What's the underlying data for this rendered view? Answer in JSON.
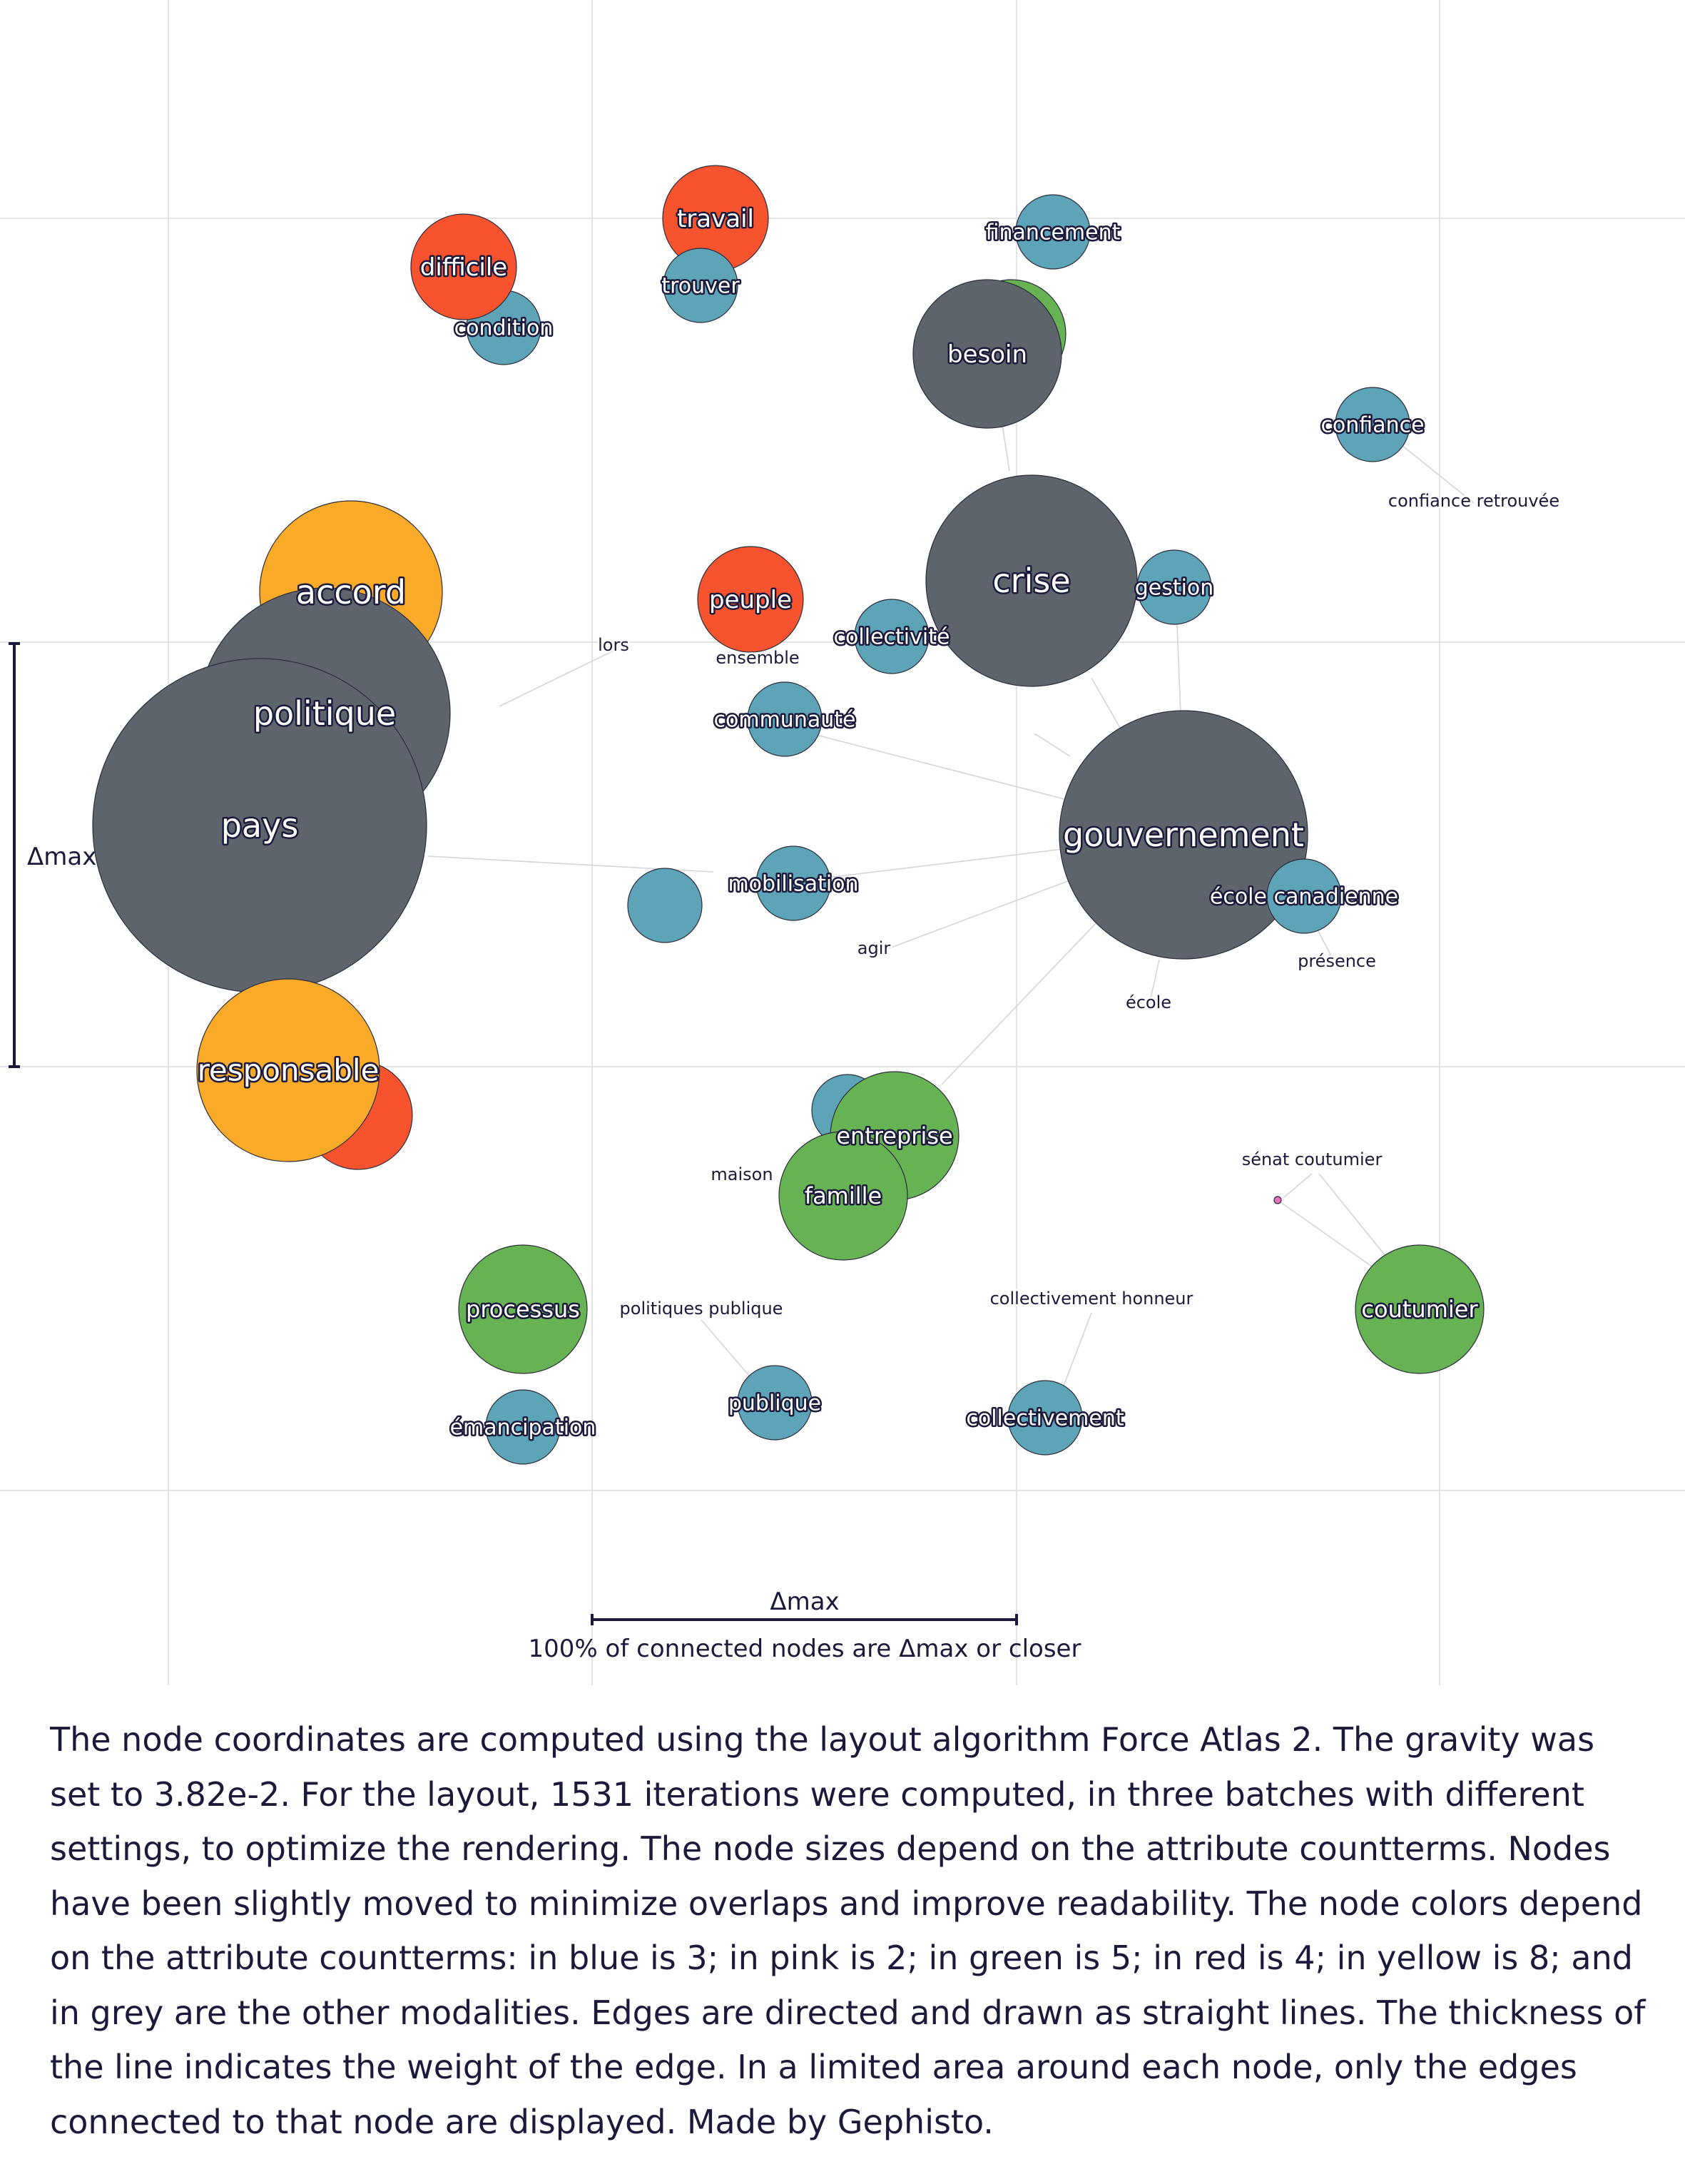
{
  "colors": {
    "blue": "#5ea4b8",
    "grey": "#5e646c",
    "red": "#f8532f",
    "green": "#67b253",
    "yellow": "#f8aa28",
    "pink": "#e86fc4",
    "ink": "#1b1a3a",
    "grid": "#e3e3e6",
    "edge": "#d4d4d8"
  },
  "nodes": [
    {
      "id": "accord",
      "label": "accord",
      "color": "yellow",
      "labeled": true
    },
    {
      "id": "politique",
      "label": "politique",
      "color": "grey",
      "labeled": true
    },
    {
      "id": "pays",
      "label": "pays",
      "color": "grey",
      "labeled": true
    },
    {
      "id": "responsable_red",
      "label": "",
      "color": "red",
      "labeled": false
    },
    {
      "id": "responsable",
      "label": "responsable",
      "color": "yellow",
      "labeled": true
    },
    {
      "id": "travail",
      "label": "travail",
      "color": "red",
      "labeled": true
    },
    {
      "id": "trouver",
      "label": "trouver",
      "color": "blue",
      "labeled": true
    },
    {
      "id": "condition",
      "label": "condition",
      "color": "blue",
      "labeled": true
    },
    {
      "id": "difficile",
      "label": "difficile",
      "color": "red",
      "labeled": true
    },
    {
      "id": "financement",
      "label": "financement",
      "color": "blue",
      "labeled": true
    },
    {
      "id": "besoin_green",
      "label": "",
      "color": "green",
      "labeled": false
    },
    {
      "id": "besoin",
      "label": "besoin",
      "color": "grey",
      "labeled": true
    },
    {
      "id": "confiance",
      "label": "confiance",
      "color": "blue",
      "labeled": true
    },
    {
      "id": "crise",
      "label": "crise",
      "color": "grey",
      "labeled": true
    },
    {
      "id": "gestion",
      "label": "gestion",
      "color": "blue",
      "labeled": true
    },
    {
      "id": "collectivite",
      "label": "collectivité",
      "color": "blue",
      "labeled": true
    },
    {
      "id": "peuple",
      "label": "peuple",
      "color": "red",
      "labeled": true
    },
    {
      "id": "communaute",
      "label": "communauté",
      "color": "blue",
      "labeled": true
    },
    {
      "id": "gouvernement",
      "label": "gouvernement",
      "color": "grey",
      "labeled": true
    },
    {
      "id": "ecole_canadienne",
      "label": "école canadienne",
      "color": "blue",
      "labeled": true
    },
    {
      "id": "mobilisation",
      "label": "mobilisation",
      "color": "blue",
      "labeled": true
    },
    {
      "id": "unlabeled_blue",
      "label": "",
      "color": "blue",
      "labeled": false
    },
    {
      "id": "entreprise_blue",
      "label": "",
      "color": "blue",
      "labeled": false
    },
    {
      "id": "entreprise",
      "label": "entreprise",
      "color": "green",
      "labeled": true
    },
    {
      "id": "famille",
      "label": "famille",
      "color": "green",
      "labeled": true
    },
    {
      "id": "processus",
      "label": "processus",
      "color": "green",
      "labeled": true
    },
    {
      "id": "emancipation",
      "label": "émancipation",
      "color": "blue",
      "labeled": true
    },
    {
      "id": "publique",
      "label": "publique",
      "color": "blue",
      "labeled": true
    },
    {
      "id": "collectivement",
      "label": "collectivement",
      "color": "blue",
      "labeled": true
    },
    {
      "id": "coutumier",
      "label": "coutumier",
      "color": "green",
      "labeled": true
    },
    {
      "id": "senat_dot",
      "label": "",
      "color": "pink",
      "labeled": false
    }
  ],
  "small_labels": [
    {
      "id": "lors",
      "text": "lors"
    },
    {
      "id": "ensemble",
      "text": "ensemble"
    },
    {
      "id": "confiance_retrouvee",
      "text": "confiance retrouvée"
    },
    {
      "id": "agir",
      "text": "agir"
    },
    {
      "id": "presence",
      "text": "présence"
    },
    {
      "id": "ecole",
      "text": "école"
    },
    {
      "id": "senat_coutumier",
      "text": "sénat coutumier"
    },
    {
      "id": "maison",
      "text": "maison"
    },
    {
      "id": "politiques_publique",
      "text": "politiques publique"
    },
    {
      "id": "collectivement_honneur",
      "text": "collectivement honneur"
    }
  ],
  "scale": {
    "vertical_label": "Δmax",
    "horizontal_label": "Δmax",
    "note": "100% of connected nodes are Δmax or closer"
  },
  "caption": "The node coordinates are computed using the layout algorithm Force Atlas 2. The gravity was set to 3.82e-2. For the layout, 1531 iterations were computed, in three batches with different settings, to optimize the rendering. The node sizes depend on the attribute countterms. Nodes have been slightly moved to minimize overlaps and improve readability. The node colors depend on the attribute countterms: in blue is 3; in pink is 2; in green is 5; in red is 4; in yellow is 8; and in grey are the other modalities. Edges are directed and drawn as straight lines. The thickness of the line indicates the weight of the edge. In a limited area around each node, only the edges connected to that node are displayed.  Made by Gephisto."
}
